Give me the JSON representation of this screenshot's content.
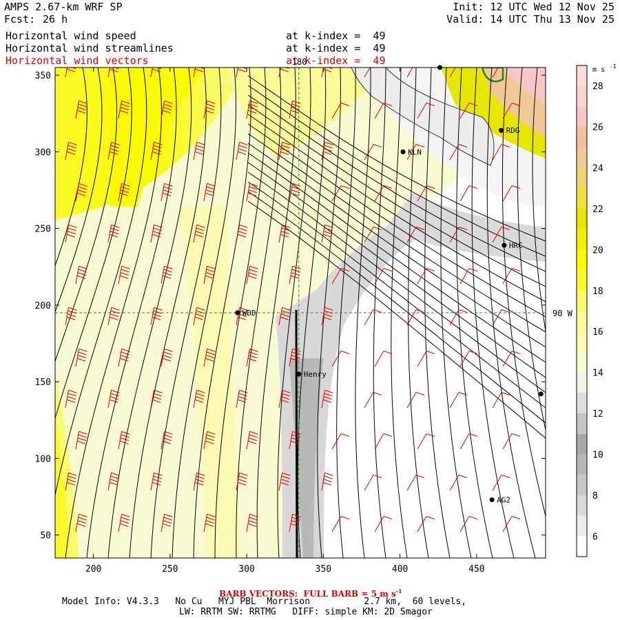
{
  "header": {
    "title": "AMPS 2.67-km WRF SP",
    "init": "Init: 12 UTC Wed 12 Nov 25",
    "fcst_label": "Fcst:",
    "fcst_value": "26 h",
    "valid": "Valid: 14 UTC Thu 13 Nov 25"
  },
  "fields": [
    {
      "name": "Horizontal wind speed",
      "level": "at k-index =  49",
      "color": "#000000"
    },
    {
      "name": "Horizontal wind streamlines",
      "level": "at k-index =  49",
      "color": "#000000"
    },
    {
      "name": "Horizontal wind vectors",
      "level": "at k-index =  49",
      "color": "#e00000"
    }
  ],
  "footer": {
    "barb_note": "BARB VECTORS:  FULL BARB = 5 m s",
    "barb_exp": "-1",
    "model_info": "Model Info: V4.3.3   No Cu   MYJ PBL  Morrison          2.7 km,  60 levels,",
    "physics": "LW: RRTM SW: RRTMG   DIFF: simple KM: 2D Smagor"
  },
  "chart_data": {
    "type": "heatmap",
    "overlays": [
      "streamlines",
      "wind-barbs"
    ],
    "xlim": [
      175,
      495
    ],
    "ylim": [
      35,
      355
    ],
    "x_ticks": [
      200,
      250,
      300,
      350,
      400,
      450
    ],
    "y_ticks": [
      50,
      100,
      150,
      200,
      250,
      300,
      350
    ],
    "colorbar": {
      "unit": "m s",
      "unit_exp": "-1",
      "levels": [
        5,
        6,
        7,
        8,
        9,
        10,
        11,
        12,
        13,
        14,
        15,
        16,
        17,
        18,
        19,
        20,
        21,
        22,
        23,
        24,
        25,
        26,
        27,
        28,
        29
      ],
      "colors": [
        "#ffffff",
        "#ececec",
        "#dadada",
        "#c8c8c8",
        "#b8b8b8",
        "#a8a8a8",
        "#c4c4c4",
        "#dedede",
        "#f2f2e4",
        "#fafad2",
        "#fafab4",
        "#fafa96",
        "#fafa6e",
        "#fafa2a",
        "#fafa00",
        "#f0f000",
        "#e6e600",
        "#f0e040",
        "#f2d26e",
        "#f2c896",
        "#f5bea0",
        "#f8c8c8",
        "#f8d2d2",
        "#fadcdc"
      ],
      "ticks": [
        6,
        8,
        10,
        12,
        14,
        16,
        18,
        20,
        22,
        24,
        26,
        28
      ]
    },
    "reference_lines": [
      {
        "label": "180",
        "axis": "x",
        "value": 334
      },
      {
        "label": "90 W",
        "axis": "y",
        "value": 195
      }
    ],
    "stations": [
      {
        "name": "KLN",
        "x": 402,
        "y": 300
      },
      {
        "name": "RDG",
        "x": 466,
        "y": 314
      },
      {
        "name": "HRC",
        "x": 468,
        "y": 239
      },
      {
        "name": "WDD",
        "x": 294,
        "y": 195
      },
      {
        "name": "Henry",
        "x": 334,
        "y": 155
      },
      {
        "name": "AG2",
        "x": 460,
        "y": 73
      },
      {
        "name": "",
        "x": 426,
        "y": 355
      },
      {
        "name": "",
        "x": 492,
        "y": 142
      }
    ],
    "wind_speed_regions": [
      {
        "desc": "west band",
        "speed_ms": 21
      },
      {
        "desc": "center-west",
        "speed_ms": 16
      },
      {
        "desc": "Henry trough",
        "speed_ms": 9
      },
      {
        "desc": "east calm",
        "speed_ms": 5
      }
    ]
  }
}
